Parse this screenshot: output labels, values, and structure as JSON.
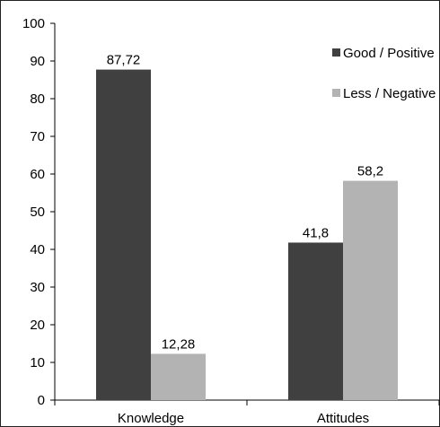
{
  "chart_data": {
    "type": "bar",
    "categories": [
      "Knowledge",
      "Attitudes"
    ],
    "series": [
      {
        "name": "Good / Positive",
        "values": [
          87.72,
          41.8
        ],
        "value_labels": [
          "87,72",
          "41,8"
        ],
        "color": "#404040"
      },
      {
        "name": "Less / Negative",
        "values": [
          12.28,
          58.2
        ],
        "value_labels": [
          "12,28",
          "58,2"
        ],
        "color": "#b3b3b3"
      }
    ],
    "ylim": [
      0,
      100
    ],
    "yticks": [
      0,
      10,
      20,
      30,
      40,
      50,
      60,
      70,
      80,
      90,
      100
    ],
    "ytick_labels": [
      "0",
      "10",
      "20",
      "30",
      "40",
      "50",
      "60",
      "70",
      "80",
      "90",
      "100"
    ],
    "grid": false,
    "legend_position": "top-right",
    "title": "",
    "xlabel": "",
    "ylabel": ""
  },
  "colors": {
    "frame": "#222222",
    "axis": "#000000",
    "background": "#ffffff"
  }
}
